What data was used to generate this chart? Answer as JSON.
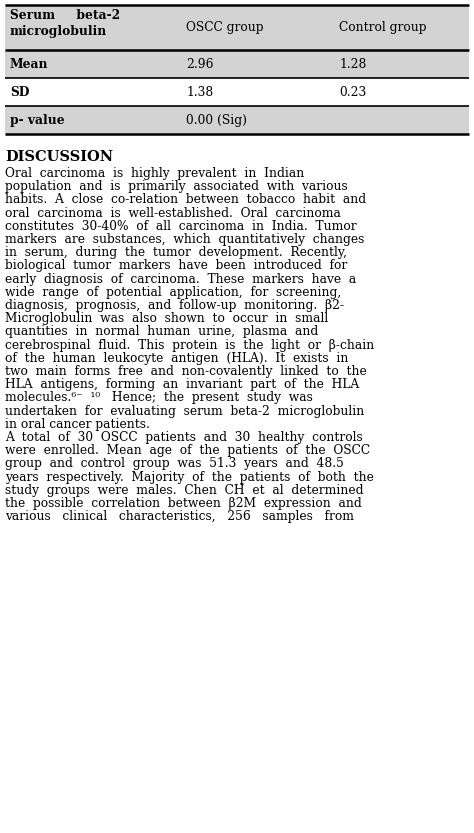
{
  "table_header_col0": "Serum     beta-2\nmicroglobulin",
  "table_header_col1": "OSCC group",
  "table_header_col2": "Control group",
  "table_rows": [
    [
      "Mean",
      "2.96",
      "1.28"
    ],
    [
      "SD",
      "1.38",
      "0.23"
    ],
    [
      "p- value",
      "0.00 (Sig)",
      ""
    ]
  ],
  "row_bg_colors": [
    "#d3d3d3",
    "#ffffff",
    "#d3d3d3"
  ],
  "header_bg": "#d3d3d3",
  "discussion_title": "DISCUSSION",
  "para1_lines": [
    "Oral  carcinoma  is  highly  prevalent  in  Indian",
    "population  and  is  primarily  associated  with  various",
    "habits.  A  close  co-relation  between  tobacco  habit  and",
    "oral  carcinoma  is  well-established.  Oral  carcinoma",
    "constitutes  30-40%  of  all  carcinoma  in  India.  Tumor",
    "markers  are  substances,  which  quantitatively  changes",
    "in  serum,  during  the  tumor  development.  Recently,",
    "biological  tumor  markers  have  been  introduced  for",
    "early  diagnosis  of  carcinoma.  These  markers  have  a",
    "wide  range  of  potential  application,  for  screening,",
    "diagnosis,  prognosis,  and  follow-up  monitoring.  β2-",
    "Microglobulin  was  also  shown  to  occur  in  small",
    "quantities  in  normal  human  urine,  plasma  and",
    "cerebrospinal  fluid.  This  protein  is  the  light  or  β-chain",
    "of  the  human  leukocyte  antigen  (HLA).  It  exists  in",
    "two  main  forms  free  and  non-covalently  linked  to  the",
    "HLA  antigens,  forming  an  invariant  part  of  the  HLA",
    "molecules.⁶⁻  ¹⁰   Hence;  the  present  study  was",
    "undertaken  for  evaluating  serum  beta-2  microglobulin",
    "in oral cancer patients."
  ],
  "para2_lines": [
    "A  total  of  30  OSCC  patients  and  30  healthy  controls",
    "were  enrolled.  Mean  age  of  the  patients  of  the  OSCC",
    "group  and  control  group  was  51.3  years  and  48.5",
    "years  respectively.  Majority  of  the  patients  of  both  the",
    "study  groups  were  males.  Chen  CH  et  al  determined",
    "the  possible  correlation  between  β2M  expression  and",
    "various   clinical   characteristics,   256   samples   from"
  ],
  "bg_color": "#ffffff",
  "text_color": "#000000",
  "font_size": 8.8,
  "title_font_size": 10.5
}
